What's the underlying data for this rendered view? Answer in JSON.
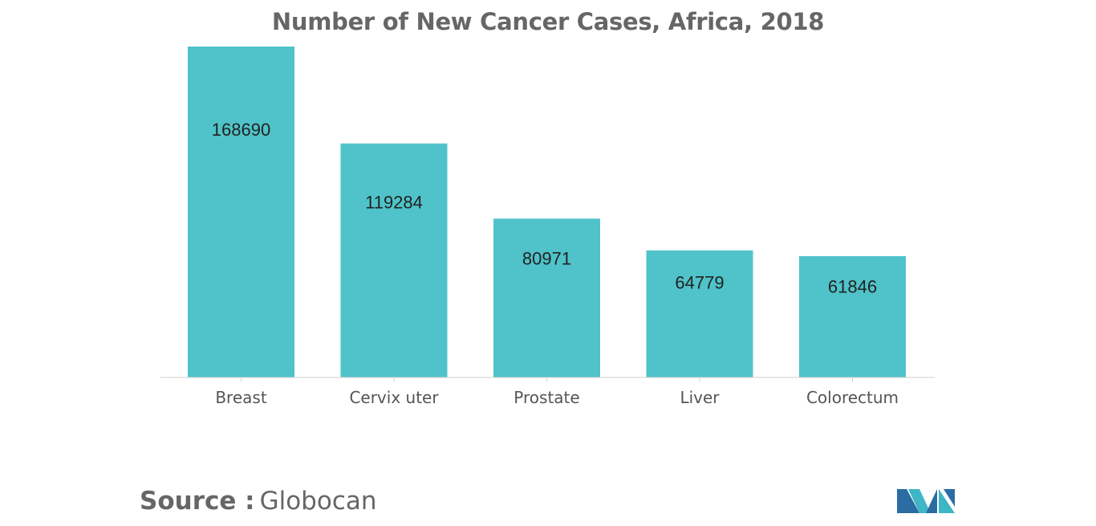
{
  "chart_data": {
    "type": "bar",
    "title": "Number of New Cancer Cases, Africa, 2018",
    "categories": [
      "Breast",
      "Cervix uter",
      "Prostate",
      "Liver",
      "Colorectum"
    ],
    "values": [
      168690,
      119284,
      80971,
      64779,
      61846
    ],
    "xlabel": "",
    "ylabel": "",
    "ylim": [
      0,
      168690
    ],
    "grid": false,
    "legend": "none",
    "bar_color": "#4FC3C9"
  },
  "source": {
    "label": "Source :",
    "value": "Globocan"
  },
  "brand": {
    "logo_icon": "mordor-logo-icon",
    "colors": [
      "#2B6CA3",
      "#3FB6C6"
    ]
  }
}
